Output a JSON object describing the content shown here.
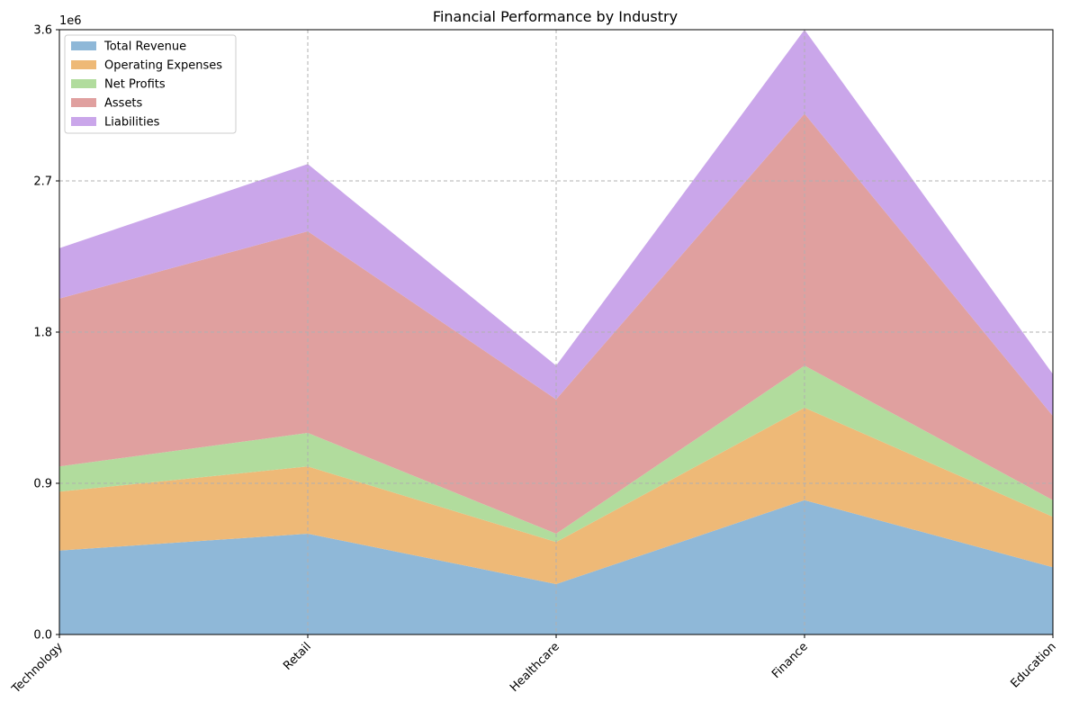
{
  "chart_data": {
    "type": "area",
    "stacked": true,
    "title": "Financial Performance by Industry",
    "xlabel": "",
    "ylabel": "",
    "y_offset_label": "1e6",
    "categories": [
      "Technology",
      "Retail",
      "Healthcare",
      "Finance",
      "Education"
    ],
    "yticks": [
      "0.0",
      "0.9",
      "1.8",
      "2.7",
      "3.6"
    ],
    "ylim": [
      0,
      3600000
    ],
    "grid": true,
    "legend_position": "upper left",
    "series": [
      {
        "name": "Total Revenue",
        "color": "#8fb8d8",
        "values": [
          500000,
          600000,
          300000,
          800000,
          400000
        ]
      },
      {
        "name": "Operating Expenses",
        "color": "#eeb977",
        "values": [
          350000,
          400000,
          250000,
          550000,
          300000
        ]
      },
      {
        "name": "Net Profits",
        "color": "#b1dc9d",
        "values": [
          150000,
          200000,
          50000,
          250000,
          100000
        ]
      },
      {
        "name": "Assets",
        "color": "#e0a09f",
        "values": [
          1000000,
          1200000,
          800000,
          1500000,
          500000
        ]
      },
      {
        "name": "Liabilities",
        "color": "#caa6ea",
        "values": [
          300000,
          400000,
          200000,
          500000,
          250000
        ]
      }
    ]
  }
}
